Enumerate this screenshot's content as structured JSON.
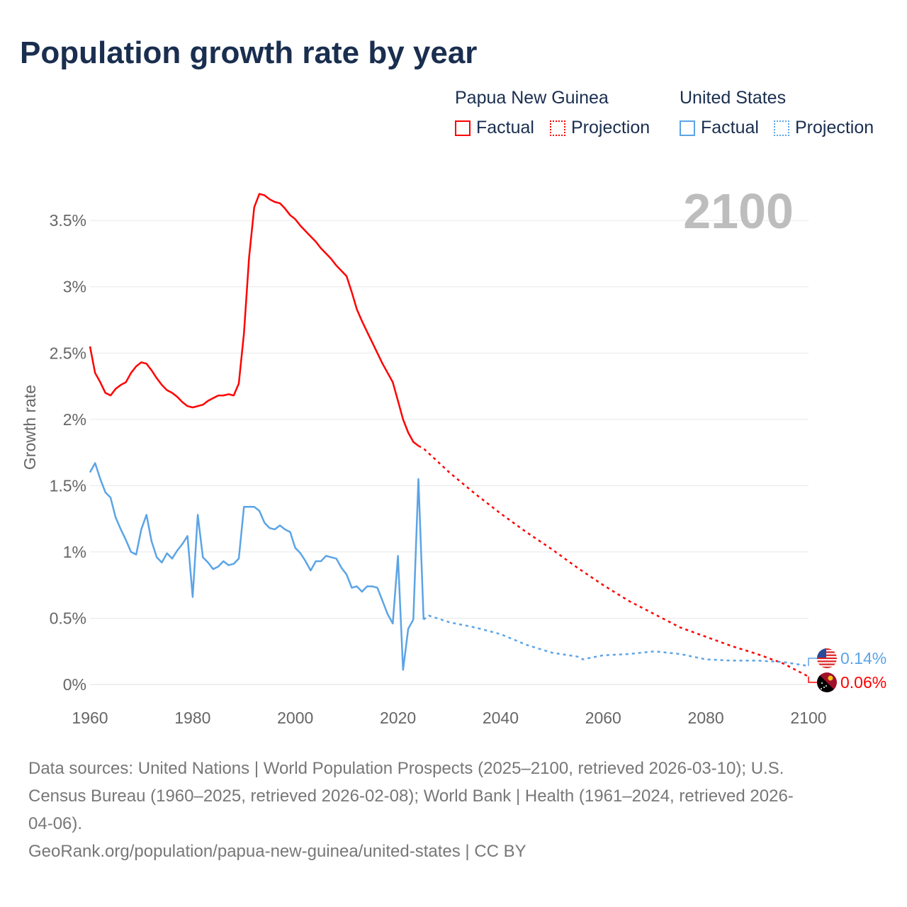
{
  "title": "Population growth rate by year",
  "legend": {
    "groups": [
      {
        "name": "Papua New Guinea",
        "color": "#ff0000",
        "factual": "Factual",
        "projection": "Projection"
      },
      {
        "name": "United States",
        "color": "#5ba4e6",
        "factual": "Factual",
        "projection": "Projection"
      }
    ]
  },
  "year_watermark": "2100",
  "end_labels": {
    "us": "0.14%",
    "png": "0.06%"
  },
  "footer": {
    "sources_line1": "Data sources: United Nations | World Population Prospects (2025–2100, retrieved 2026-03-10); U.S.",
    "sources_line2": "Census Bureau (1960–2025, retrieved 2026-02-08); World Bank | Health (1961–2024, retrieved 2026-",
    "sources_line3": "04-06).",
    "url": "GeoRank.org/population/papua-new-guinea/united-states | CC BY"
  },
  "chart_data": {
    "type": "line",
    "title": "Population growth rate by year",
    "xlabel": "",
    "ylabel": "Growth rate",
    "xlim": [
      1960,
      2100
    ],
    "ylim": [
      0,
      3.7
    ],
    "xticks": [
      "1960",
      "1980",
      "2000",
      "2020",
      "2040",
      "2060",
      "2080",
      "2100"
    ],
    "yticks": [
      {
        "v": 0,
        "label": "0%"
      },
      {
        "v": 0.5,
        "label": "0.5%"
      },
      {
        "v": 1,
        "label": "1%"
      },
      {
        "v": 1.5,
        "label": "1.5%"
      },
      {
        "v": 2,
        "label": "2%"
      },
      {
        "v": 2.5,
        "label": "2.5%"
      },
      {
        "v": 3,
        "label": "3%"
      },
      {
        "v": 3.5,
        "label": "3.5%"
      }
    ],
    "grid": true,
    "series": [
      {
        "name": "Papua New Guinea",
        "kind": "factual",
        "color": "#ff0000",
        "start": 1960,
        "values": [
          2.55,
          2.35,
          2.28,
          2.2,
          2.18,
          2.23,
          2.26,
          2.28,
          2.35,
          2.4,
          2.43,
          2.42,
          2.37,
          2.31,
          2.26,
          2.22,
          2.2,
          2.17,
          2.13,
          2.1,
          2.09,
          2.1,
          2.11,
          2.14,
          2.16,
          2.18,
          2.18,
          2.19,
          2.18,
          2.27,
          2.65,
          3.22,
          3.6,
          3.7,
          3.69,
          3.66,
          3.64,
          3.63,
          3.59,
          3.54,
          3.51,
          3.46,
          3.42,
          3.38,
          3.34,
          3.29,
          3.25,
          3.21,
          3.16,
          3.12,
          3.08,
          2.96,
          2.83,
          2.74,
          2.66,
          2.58,
          2.5,
          2.42,
          2.35,
          2.28,
          2.14,
          2.0,
          1.9,
          1.83,
          1.8
        ]
      },
      {
        "name": "Papua New Guinea",
        "kind": "projection",
        "color": "#ff0000",
        "x": [
          2024,
          2025,
          2030,
          2035,
          2040,
          2045,
          2050,
          2055,
          2060,
          2065,
          2070,
          2075,
          2080,
          2085,
          2090,
          2095,
          2100
        ],
        "values": [
          1.8,
          1.78,
          1.6,
          1.44,
          1.29,
          1.15,
          1.02,
          0.88,
          0.75,
          0.63,
          0.53,
          0.43,
          0.36,
          0.29,
          0.23,
          0.16,
          0.06
        ]
      },
      {
        "name": "United States",
        "kind": "factual",
        "color": "#5ba4e6",
        "start": 1960,
        "values": [
          1.6,
          1.67,
          1.55,
          1.45,
          1.41,
          1.26,
          1.17,
          1.09,
          1.0,
          0.98,
          1.17,
          1.28,
          1.08,
          0.96,
          0.92,
          0.99,
          0.95,
          1.01,
          1.06,
          1.12,
          0.66,
          1.28,
          0.96,
          0.92,
          0.87,
          0.89,
          0.93,
          0.9,
          0.91,
          0.95,
          1.34,
          1.34,
          1.34,
          1.31,
          1.22,
          1.18,
          1.17,
          1.2,
          1.17,
          1.15,
          1.03,
          0.99,
          0.93,
          0.86,
          0.93,
          0.93,
          0.97,
          0.96,
          0.95,
          0.88,
          0.83,
          0.73,
          0.74,
          0.7,
          0.74,
          0.74,
          0.73,
          0.63,
          0.53,
          0.46,
          0.97,
          0.11,
          0.42,
          0.49,
          1.55,
          0.49
        ]
      },
      {
        "name": "United States",
        "kind": "projection",
        "color": "#5ba4e6",
        "x": [
          2025,
          2026,
          2030,
          2035,
          2040,
          2045,
          2050,
          2055,
          2056,
          2060,
          2065,
          2070,
          2075,
          2080,
          2085,
          2090,
          2095,
          2100
        ],
        "values": [
          0.49,
          0.52,
          0.47,
          0.43,
          0.38,
          0.3,
          0.24,
          0.21,
          0.19,
          0.22,
          0.23,
          0.25,
          0.23,
          0.19,
          0.18,
          0.18,
          0.17,
          0.14
        ]
      }
    ]
  }
}
